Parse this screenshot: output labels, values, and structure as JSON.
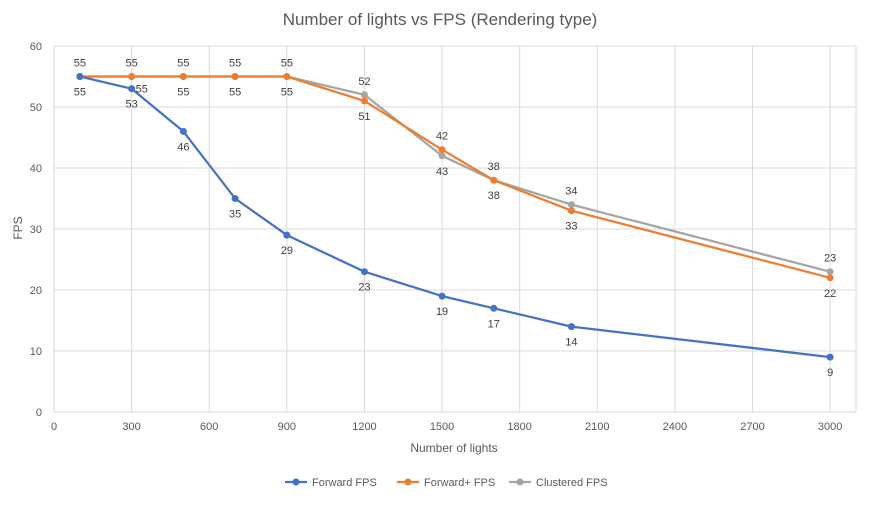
{
  "chart_data": {
    "type": "line",
    "title": "Number of lights vs FPS (Rendering type)",
    "xlabel": "Number of lights",
    "ylabel": "FPS",
    "xlim": [
      0,
      3100
    ],
    "ylim": [
      0,
      60
    ],
    "xticks": [
      0,
      300,
      600,
      900,
      1200,
      1500,
      1800,
      2100,
      2400,
      2700,
      3000
    ],
    "yticks": [
      0,
      10,
      20,
      30,
      40,
      50,
      60
    ],
    "grid": true,
    "legend_position": "bottom",
    "series": [
      {
        "name": "Forward FPS",
        "color": "#4472c4",
        "x": [
          100,
          300,
          500,
          700,
          900,
          1200,
          1500,
          1700,
          2000,
          3000
        ],
        "y": [
          55,
          53,
          46,
          35,
          29,
          23,
          19,
          17,
          14,
          9
        ]
      },
      {
        "name": "Forward+ FPS",
        "color": "#ed7d31",
        "x": [
          100,
          300,
          500,
          700,
          900,
          1200,
          1500,
          1700,
          2000,
          3000
        ],
        "y": [
          55,
          55,
          55,
          55,
          55,
          51,
          43,
          38,
          33,
          22
        ]
      },
      {
        "name": "Clustered FPS",
        "color": "#a5a5a5",
        "x": [
          100,
          300,
          500,
          700,
          900,
          1200,
          1500,
          1700,
          2000,
          3000
        ],
        "y": [
          55,
          55,
          55,
          55,
          55,
          52,
          42,
          38,
          34,
          23
        ]
      }
    ],
    "data_labels": [
      {
        "text": "55",
        "x": 100,
        "y": 55,
        "position": "above"
      },
      {
        "text": "55",
        "x": 300,
        "y": 55,
        "position": "above"
      },
      {
        "text": "55",
        "x": 500,
        "y": 55,
        "position": "above"
      },
      {
        "text": "55",
        "x": 700,
        "y": 55,
        "position": "above"
      },
      {
        "text": "55",
        "x": 900,
        "y": 55,
        "position": "above"
      },
      {
        "text": "52",
        "x": 1200,
        "y": 52,
        "position": "above"
      },
      {
        "text": "42",
        "x": 1500,
        "y": 43,
        "position": "above"
      },
      {
        "text": "38",
        "x": 1700,
        "y": 38,
        "position": "above"
      },
      {
        "text": "34",
        "x": 2000,
        "y": 34,
        "position": "above"
      },
      {
        "text": "23",
        "x": 3000,
        "y": 23,
        "position": "above"
      },
      {
        "text": "55",
        "x": 100,
        "y": 55,
        "position": "below"
      },
      {
        "text": "55",
        "x": 300,
        "y": 53,
        "position": "right"
      },
      {
        "text": "55",
        "x": 500,
        "y": 55,
        "position": "below"
      },
      {
        "text": "55",
        "x": 700,
        "y": 55,
        "position": "below"
      },
      {
        "text": "55",
        "x": 900,
        "y": 55,
        "position": "below"
      },
      {
        "text": "51",
        "x": 1200,
        "y": 51,
        "position": "below"
      },
      {
        "text": "43",
        "x": 1500,
        "y": 42,
        "position": "below"
      },
      {
        "text": "38",
        "x": 1700,
        "y": 38,
        "position": "below"
      },
      {
        "text": "33",
        "x": 2000,
        "y": 33,
        "position": "below"
      },
      {
        "text": "22",
        "x": 3000,
        "y": 22,
        "position": "below"
      },
      {
        "text": "53",
        "x": 300,
        "y": 53,
        "position": "below"
      },
      {
        "text": "46",
        "x": 500,
        "y": 46,
        "position": "below"
      },
      {
        "text": "35",
        "x": 700,
        "y": 35,
        "position": "below"
      },
      {
        "text": "29",
        "x": 900,
        "y": 29,
        "position": "below"
      },
      {
        "text": "23",
        "x": 1200,
        "y": 23,
        "position": "below"
      },
      {
        "text": "19",
        "x": 1500,
        "y": 19,
        "position": "below"
      },
      {
        "text": "17",
        "x": 1700,
        "y": 17,
        "position": "below"
      },
      {
        "text": "14",
        "x": 2000,
        "y": 14,
        "position": "below"
      },
      {
        "text": "9",
        "x": 3000,
        "y": 9,
        "position": "below"
      }
    ]
  }
}
